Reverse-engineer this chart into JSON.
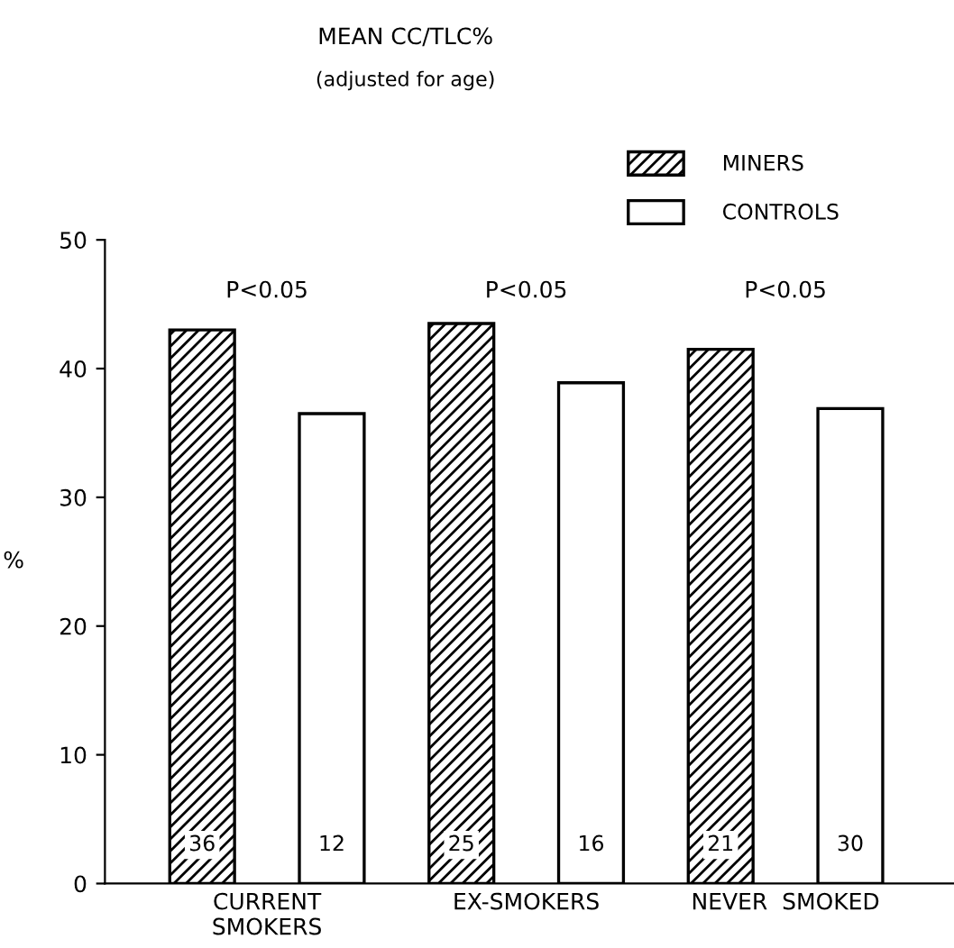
{
  "chart_data": {
    "type": "bar",
    "title": "MEAN CC/TLC%",
    "subtitle": "(adjusted for age)",
    "ylabel": "%",
    "categories": [
      "CURRENT\nSMOKERS",
      "EX-SMOKERS",
      "NEVER  SMOKED"
    ],
    "series": [
      {
        "name": "MINERS",
        "color": "#000000",
        "values": [
          43.0,
          43.5,
          41.5
        ]
      },
      {
        "name": "CONTROLS",
        "color": "#000000",
        "values": [
          36.5,
          38.9,
          36.9
        ]
      }
    ],
    "ylim": [
      0,
      50
    ],
    "yticks": [
      0,
      10,
      20,
      30,
      40,
      50
    ],
    "grid": false,
    "legend": "top right",
    "annotations": [
      "P<0.05",
      "P<0.05",
      "P<0.05",
      "36",
      "12",
      "25",
      "16",
      "21",
      "30"
    ]
  }
}
